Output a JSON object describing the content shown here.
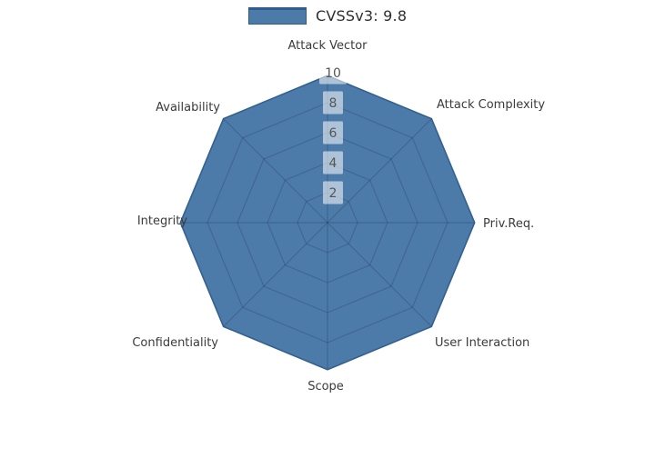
{
  "legend": {
    "label": "CVSSv3: 9.8",
    "swatch_fill": "#4d7ba9",
    "swatch_border": "#2e5d8e"
  },
  "chart_data": {
    "type": "radar",
    "title": "",
    "categories": [
      "Attack Vector",
      "Attack Complexity",
      "Priv.Req.",
      "User Interaction",
      "Scope",
      "Confidentiality",
      "Integrity",
      "Availability"
    ],
    "series": [
      {
        "name": "CVSSv3: 9.8",
        "values": [
          9.8,
          9.8,
          9.8,
          9.8,
          9.8,
          9.8,
          9.8,
          9.8
        ]
      }
    ],
    "rlim": [
      0,
      10
    ],
    "rticks": [
      2,
      4,
      6,
      8,
      10
    ],
    "grid": "on",
    "legend_position": "top-center",
    "fill_color": "#4d7ba9",
    "line_color": "#33618f",
    "grid_color": "rgba(20,30,60,0.22)",
    "tick_box_bg": "rgba(255,255,255,0.55)",
    "tick_text_color": "#565656",
    "label_color": "#3b3b3b"
  }
}
